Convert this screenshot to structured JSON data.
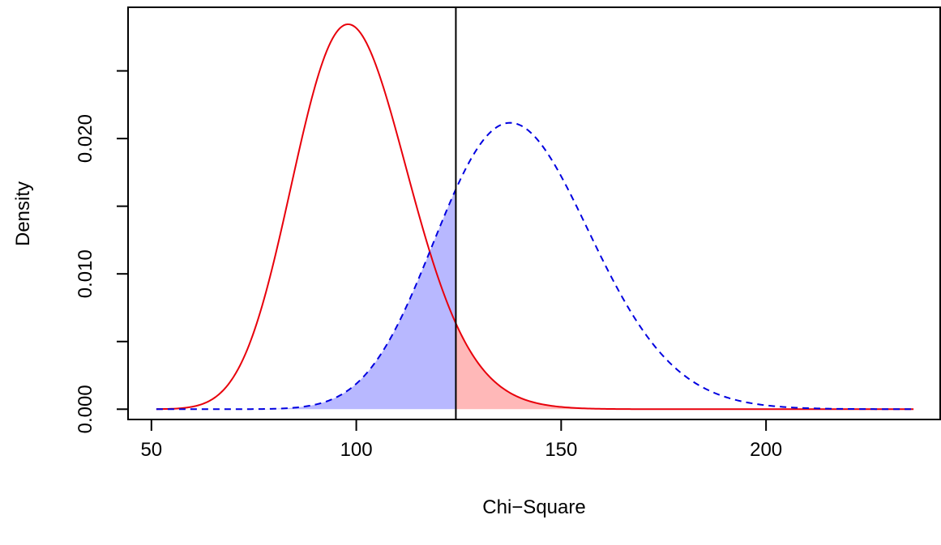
{
  "chart_data": {
    "type": "line",
    "title": "",
    "xlabel": "Chi−Square",
    "ylabel": "Density",
    "xlim": [
      44.3,
      242.7
    ],
    "ylim": [
      -0.00076,
      0.0297
    ],
    "x_ticks": [
      50,
      100,
      150,
      200
    ],
    "x_tick_labels": [
      "50",
      "100",
      "150",
      "200"
    ],
    "y_ticks": [
      0,
      0.005,
      0.01,
      0.015,
      0.02,
      0.025
    ],
    "y_tick_labels": [
      "0.000",
      "",
      "0.010",
      "",
      "0.020",
      ""
    ],
    "grid": false,
    "legend": "none",
    "critical_value": 124.3,
    "series": [
      {
        "df": 100,
        "ncp": 0,
        "color": "#e8000b",
        "line_style": "solid",
        "x_range": [
          51.2,
          236.0
        ],
        "fill": {
          "from": 124.3,
          "to": 236.0,
          "color": "#ffb8b8"
        }
      },
      {
        "df": 100,
        "ncp": 40,
        "color": "#0000e0",
        "line_style": "dashed",
        "x_range": [
          51.2,
          236.0
        ],
        "fill": {
          "from": 51.2,
          "to": 124.3,
          "color": "#b8b8ff"
        }
      }
    ]
  }
}
